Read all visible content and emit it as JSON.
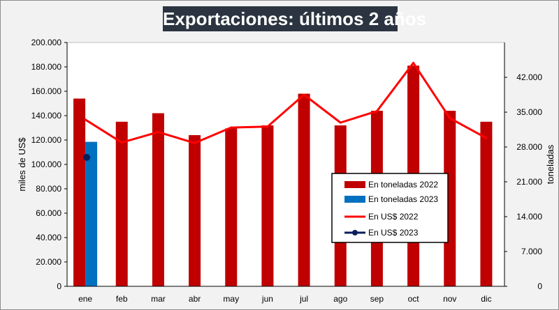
{
  "chart_data": {
    "type": "bar",
    "title": "Exportaciones: últimos 2 años",
    "categories": [
      "ene",
      "feb",
      "mar",
      "abr",
      "may",
      "jun",
      "jul",
      "ago",
      "sep",
      "oct",
      "nov",
      "dic"
    ],
    "ylabel_left": "miles de US$",
    "ylabel_right": "toneladas",
    "ylim_left": [
      0,
      200000
    ],
    "ylim_right": [
      0,
      49000
    ],
    "yticks_left": [
      "0",
      "20.000",
      "40.000",
      "60.000",
      "80.000",
      "100.000",
      "120.000",
      "140.000",
      "160.000",
      "180.000",
      "200.000"
    ],
    "yticks_left_values": [
      0,
      20000,
      40000,
      60000,
      80000,
      100000,
      120000,
      140000,
      160000,
      180000,
      200000
    ],
    "yticks_right": [
      "0",
      "7.000",
      "14.000",
      "21.000",
      "28.000",
      "35.000",
      "42.000"
    ],
    "yticks_right_values": [
      0,
      7000,
      14000,
      21000,
      28000,
      35000,
      42000
    ],
    "legend_position": "lower-right",
    "series": [
      {
        "name": "En toneladas 2022",
        "kind": "bar",
        "axis": "left",
        "color": "#c00000",
        "values": [
          154000,
          135000,
          142000,
          124000,
          129500,
          132000,
          158000,
          132000,
          144000,
          181000,
          144000,
          135000
        ]
      },
      {
        "name": "En toneladas 2023",
        "kind": "bar",
        "axis": "left",
        "color": "#0070c0",
        "values": [
          118500,
          null,
          null,
          null,
          null,
          null,
          null,
          null,
          null,
          null,
          null,
          null
        ]
      },
      {
        "name": "En US$ 2022",
        "kind": "line",
        "axis": "right",
        "color": "#ff0000",
        "values": [
          33500,
          28900,
          31000,
          28800,
          31900,
          32100,
          38500,
          32900,
          35200,
          44900,
          33800,
          29800
        ]
      },
      {
        "name": "En US$ 2023",
        "kind": "line-marker",
        "axis": "right",
        "color": "#0a1f5c",
        "values": [
          25900,
          null,
          null,
          null,
          null,
          null,
          null,
          null,
          null,
          null,
          null,
          null
        ]
      }
    ]
  }
}
